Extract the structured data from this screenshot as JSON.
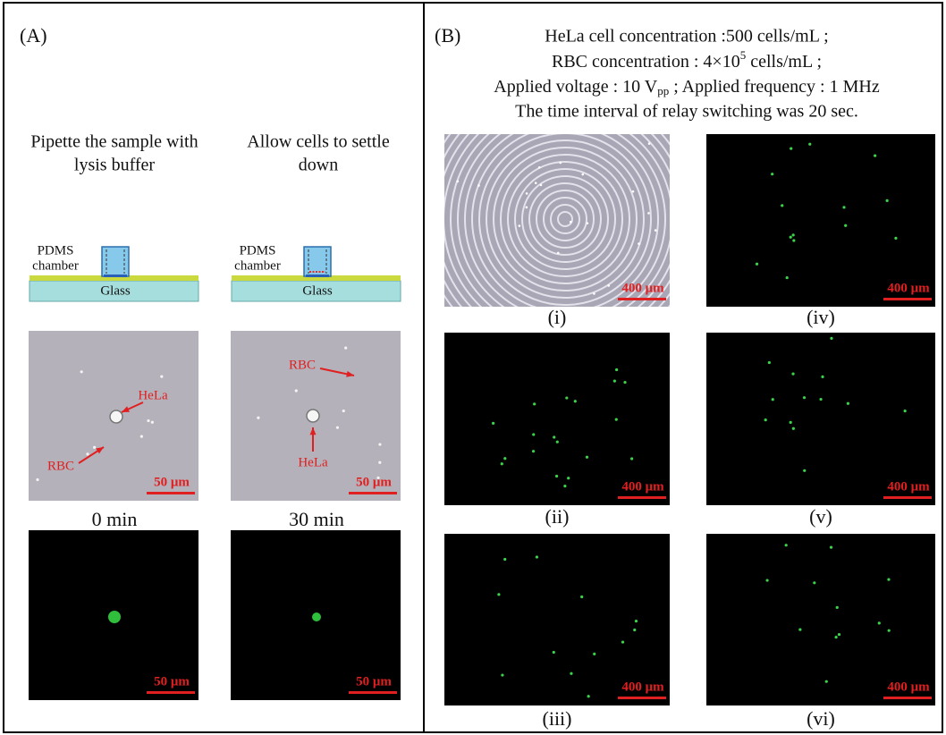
{
  "panel_a": {
    "label": "(A)",
    "steps": [
      {
        "caption": [
          "Pipette the sample with",
          "lysis buffer"
        ],
        "chamber": [
          "PDMS",
          "chamber"
        ],
        "substrate": "Glass"
      },
      {
        "caption": [
          "Allow cells to settle",
          "down"
        ],
        "chamber": [
          "PDMS",
          "chamber"
        ],
        "substrate": "Glass"
      }
    ],
    "micrographs": [
      {
        "annotations": [
          "HeLa",
          "RBC"
        ],
        "scale": "50 μm",
        "time": "0 min",
        "fluorescence_scale": "50 μm"
      },
      {
        "annotations": [
          "RBC",
          "HeLa"
        ],
        "scale": "50 μm",
        "time": "30 min",
        "fluorescence_scale": "50 μm"
      }
    ]
  },
  "panel_b": {
    "label": "(B)",
    "conditions": [
      [
        "HeLa cell concentration :500 cells/mL ;"
      ],
      [
        "RBC concentration : 4×10",
        "5",
        " cells/mL ;"
      ],
      [
        "Applied voltage : 10 V",
        "pp",
        " ; Applied frequency : 1 MHz"
      ],
      [
        "The time interval of relay switching was 20 sec."
      ]
    ],
    "images": [
      {
        "label": "(i)",
        "scale": "400 μm"
      },
      {
        "label": "(ii)",
        "scale": "400 μm"
      },
      {
        "label": "(iii)",
        "scale": "400 μm"
      },
      {
        "label": "(iv)",
        "scale": "400 μm"
      },
      {
        "label": "(v)",
        "scale": "400 μm"
      },
      {
        "label": "(vi)",
        "scale": "400 μm"
      }
    ]
  }
}
